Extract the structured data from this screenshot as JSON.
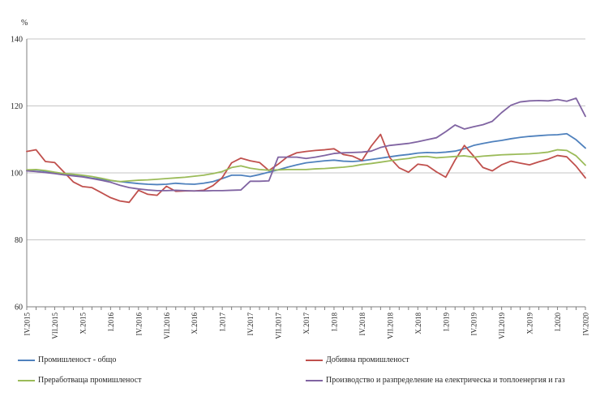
{
  "chart_data": {
    "type": "line",
    "title": "",
    "ylabel": "%",
    "xlabel": "",
    "ylim": [
      60,
      140
    ],
    "yticks": [
      140,
      120,
      100,
      80,
      60
    ],
    "grid": "horizontal",
    "legend_position": "bottom-two-columns",
    "n_points": 61,
    "x_period": "monthly",
    "x_label_every_n_months": 3,
    "x_tick_labels": [
      "IV.2015",
      "VII.2015",
      "X.2015",
      "I.2016",
      "IV.2016",
      "VII.2016",
      "X.2016",
      "I.2017",
      "IV.2017",
      "VII.2017",
      "X.2017",
      "I.2018",
      "IV.2018",
      "VII.2018",
      "X.2018",
      "I.2019",
      "IV.2019",
      "VII.2019",
      "X.2019",
      "I.2020",
      "IV.2020"
    ],
    "colors": {
      "grid": "#c6c6c6",
      "axis": "#7f7f7f",
      "text": "#262626"
    },
    "series": [
      {
        "name": "Промишленост - общо",
        "slug": "industry-total",
        "color": "#4f81bd",
        "values": [
          100.8,
          100.9,
          100.5,
          100.0,
          99.6,
          99.2,
          98.9,
          98.4,
          98.1,
          97.7,
          97.4,
          97.1,
          96.8,
          96.6,
          96.5,
          96.6,
          96.9,
          96.7,
          96.6,
          96.9,
          97.4,
          98.3,
          99.3,
          99.3,
          98.9,
          99.5,
          100.2,
          100.9,
          101.7,
          102.4,
          103.0,
          103.3,
          103.6,
          103.8,
          103.5,
          103.4,
          103.6,
          104.0,
          104.4,
          104.8,
          105.2,
          105.5,
          105.9,
          106.1,
          106.0,
          106.2,
          106.5,
          107.2,
          108.2,
          108.8,
          109.3,
          109.7,
          110.2,
          110.6,
          110.9,
          111.1,
          111.3,
          111.4,
          111.7,
          109.9,
          107.4
        ]
      },
      {
        "name": "Добивна промишленост",
        "slug": "mining",
        "color": "#c0504d",
        "values": [
          106.4,
          106.9,
          103.4,
          103.1,
          100.2,
          97.3,
          95.9,
          95.6,
          94.1,
          92.6,
          91.6,
          91.2,
          94.8,
          93.6,
          93.3,
          96.0,
          94.5,
          94.6,
          94.6,
          94.8,
          96.2,
          98.6,
          103.0,
          104.4,
          103.6,
          103.1,
          100.7,
          102.6,
          104.8,
          106.0,
          106.4,
          106.7,
          106.9,
          107.2,
          105.5,
          105.0,
          103.7,
          108.0,
          111.5,
          104.5,
          101.5,
          100.2,
          102.6,
          102.2,
          100.3,
          98.7,
          103.8,
          108.2,
          105.0,
          101.6,
          100.6,
          102.4,
          103.5,
          102.9,
          102.4,
          103.3,
          104.1,
          105.2,
          104.8,
          102.0,
          98.5
        ]
      },
      {
        "name": "Преработваща промишленост",
        "slug": "manufacturing",
        "color": "#9bbb59",
        "values": [
          100.9,
          101.0,
          100.7,
          100.2,
          99.8,
          99.6,
          99.3,
          98.9,
          98.4,
          97.8,
          97.4,
          97.6,
          97.8,
          97.9,
          98.1,
          98.3,
          98.5,
          98.7,
          99.0,
          99.3,
          99.8,
          100.4,
          101.6,
          102.1,
          101.4,
          101.0,
          100.8,
          100.9,
          101.0,
          101.0,
          101.0,
          101.2,
          101.3,
          101.5,
          101.7,
          102.0,
          102.5,
          102.8,
          103.2,
          103.6,
          104.0,
          104.3,
          104.8,
          104.9,
          104.5,
          104.7,
          104.9,
          105.1,
          104.7,
          105.0,
          105.2,
          105.4,
          105.5,
          105.6,
          105.7,
          105.9,
          106.2,
          106.9,
          106.7,
          105.1,
          102.3
        ]
      },
      {
        "name": "Производство и разпределение на електрическа и топлоенергия  и газ",
        "slug": "electricity-heat-gas",
        "color": "#8064a2",
        "values": [
          100.6,
          100.4,
          100.1,
          99.8,
          99.4,
          99.1,
          98.8,
          98.3,
          97.8,
          97.2,
          96.3,
          95.6,
          95.2,
          94.9,
          94.7,
          94.7,
          94.8,
          94.7,
          94.6,
          94.6,
          94.7,
          94.7,
          94.8,
          94.9,
          97.5,
          97.5,
          97.6,
          104.7,
          104.7,
          104.7,
          104.3,
          104.7,
          105.2,
          105.8,
          106.0,
          106.1,
          106.2,
          106.5,
          107.6,
          108.2,
          108.5,
          108.8,
          109.3,
          109.9,
          110.5,
          112.3,
          114.3,
          113.1,
          113.8,
          114.4,
          115.4,
          118.0,
          120.2,
          121.2,
          121.5,
          121.6,
          121.5,
          121.9,
          121.4,
          122.3,
          116.9
        ]
      }
    ]
  }
}
